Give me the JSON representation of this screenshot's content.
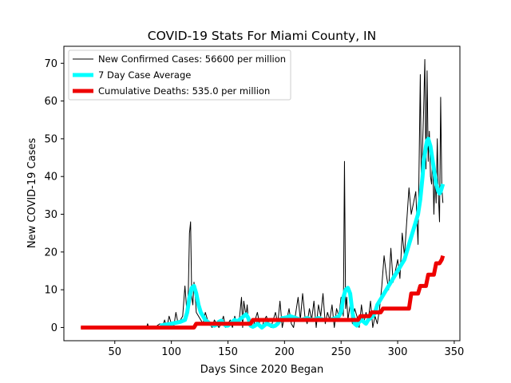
{
  "chart_data": {
    "type": "line",
    "title": "COVID-19 Stats For Miami County, IN",
    "xlabel": "Days Since 2020 Began",
    "ylabel": "New COVID-19 Cases",
    "xlim": [
      5,
      355
    ],
    "ylim": [
      -3.5,
      74.5
    ],
    "xticks": [
      50,
      100,
      150,
      200,
      250,
      300,
      350
    ],
    "yticks": [
      0,
      10,
      20,
      30,
      40,
      50,
      60,
      70
    ],
    "grid": false,
    "legend_position": "top-left",
    "series": [
      {
        "name": "New Confirmed Cases: 56600 per million",
        "color": "#000000",
        "x": [
          20,
          78,
          79,
          80,
          85,
          90,
          92,
          94,
          96,
          98,
          100,
          102,
          104,
          106,
          108,
          110,
          112,
          114,
          115,
          116,
          117,
          118,
          119,
          120,
          121,
          122,
          124,
          126,
          128,
          130,
          132,
          134,
          136,
          138,
          140,
          142,
          144,
          146,
          148,
          150,
          152,
          154,
          156,
          158,
          160,
          162,
          163,
          164,
          165,
          166,
          167,
          168,
          170,
          172,
          174,
          176,
          178,
          180,
          182,
          184,
          186,
          188,
          190,
          192,
          194,
          196,
          198,
          200,
          202,
          204,
          206,
          208,
          210,
          212,
          214,
          216,
          218,
          220,
          222,
          224,
          226,
          228,
          230,
          232,
          234,
          236,
          238,
          240,
          242,
          244,
          246,
          248,
          250,
          252,
          253,
          254,
          255,
          256,
          258,
          260,
          262,
          264,
          266,
          268,
          270,
          272,
          274,
          276,
          278,
          280,
          282,
          284,
          286,
          288,
          290,
          292,
          294,
          296,
          298,
          300,
          302,
          304,
          306,
          308,
          310,
          312,
          314,
          316,
          318,
          320,
          321,
          322,
          323,
          324,
          325,
          326,
          327,
          328,
          329,
          330,
          331,
          332,
          333,
          334,
          335,
          336,
          337,
          338,
          339,
          340
        ],
        "values": [
          0,
          0,
          1,
          0,
          0,
          1,
          0,
          2,
          0,
          3,
          1,
          0,
          4,
          1,
          2,
          3,
          11,
          3,
          10,
          25,
          28,
          8,
          6,
          12,
          9,
          4,
          3,
          2,
          1,
          4,
          2,
          1,
          0,
          2,
          1,
          0,
          1,
          3,
          0,
          1,
          2,
          0,
          3,
          1,
          2,
          8,
          0,
          7,
          5,
          3,
          6,
          2,
          1,
          0,
          2,
          4,
          1,
          0,
          2,
          3,
          1,
          0,
          2,
          4,
          1,
          7,
          0,
          3,
          2,
          5,
          1,
          0,
          4,
          8,
          2,
          9,
          3,
          1,
          5,
          2,
          7,
          0,
          6,
          3,
          9,
          1,
          4,
          2,
          6,
          0,
          5,
          3,
          8,
          3,
          44,
          5,
          8,
          2,
          6,
          1,
          5,
          3,
          0,
          6,
          1,
          4,
          2,
          7,
          0,
          3,
          1,
          5,
          11,
          19,
          14,
          10,
          21,
          12,
          15,
          18,
          13,
          25,
          19,
          28,
          37,
          30,
          33,
          36,
          22,
          67,
          35,
          48,
          58,
          71,
          42,
          68,
          44,
          52,
          40,
          38,
          46,
          30,
          41,
          33,
          50,
          35,
          28,
          61,
          37,
          33
        ]
      },
      {
        "name": "7 Day Case Average",
        "color": "#00ffff",
        "x": [
          90,
          100,
          108,
          112,
          114,
          116,
          118,
          120,
          122,
          124,
          126,
          128,
          130,
          132,
          134,
          136,
          138,
          140,
          142,
          144,
          146,
          148,
          150,
          152,
          154,
          156,
          158,
          160,
          162,
          164,
          166,
          168,
          170,
          172,
          174,
          176,
          178,
          180,
          182,
          184,
          186,
          188,
          190,
          192,
          194,
          196,
          198,
          200,
          205,
          210,
          215,
          220,
          225,
          230,
          235,
          240,
          245,
          248,
          250,
          252,
          254,
          256,
          258,
          260,
          262,
          264,
          266,
          268,
          270,
          272,
          274,
          276,
          278,
          280,
          282,
          284,
          286,
          288,
          290,
          292,
          294,
          296,
          298,
          300,
          302,
          304,
          306,
          308,
          310,
          312,
          314,
          316,
          318,
          320,
          322,
          323,
          324,
          325,
          326,
          327,
          328,
          329,
          330,
          331,
          332,
          333,
          334,
          335,
          336,
          337,
          338,
          339,
          340
        ],
        "values": [
          0.5,
          1,
          1.5,
          2,
          4,
          8,
          10.5,
          11,
          9,
          6,
          4,
          3,
          2,
          1.5,
          1,
          0.8,
          0.5,
          0.8,
          1.5,
          1.8,
          1.2,
          0.5,
          0.5,
          1,
          1.5,
          2,
          1.5,
          2,
          2.5,
          3,
          3.5,
          2.5,
          0.5,
          0.2,
          0.5,
          1,
          0.5,
          0,
          0.5,
          1,
          0.8,
          0.5,
          0.3,
          0.5,
          1,
          2,
          2.5,
          2.5,
          3,
          2.5,
          2,
          2.5,
          2,
          2.5,
          2,
          2,
          2.5,
          3,
          4,
          8,
          10,
          10.5,
          9,
          4,
          1,
          0.5,
          1.5,
          2,
          1.5,
          1,
          2,
          2.5,
          3,
          4,
          6,
          7,
          8,
          9,
          10,
          11,
          12,
          13,
          14,
          15,
          16,
          17,
          18,
          20,
          22,
          24,
          26,
          28,
          30,
          34,
          40,
          44,
          46,
          48,
          49.5,
          50,
          49,
          48,
          46,
          44,
          42,
          40,
          38,
          37,
          36,
          35.5,
          36,
          37,
          38
        ]
      },
      {
        "name": "Cumulative Deaths: 535.0 per million",
        "color": "#ee0000",
        "x": [
          20,
          120,
          122,
          170,
          172,
          265,
          267,
          275,
          277,
          285,
          287,
          310,
          312,
          318,
          320,
          325,
          327,
          332,
          334,
          337,
          339,
          340
        ],
        "values": [
          0,
          0,
          1,
          1,
          2,
          2,
          3,
          3,
          4,
          4,
          5,
          5,
          9,
          9,
          11,
          11,
          14,
          14,
          17,
          17,
          18,
          19
        ]
      }
    ]
  }
}
